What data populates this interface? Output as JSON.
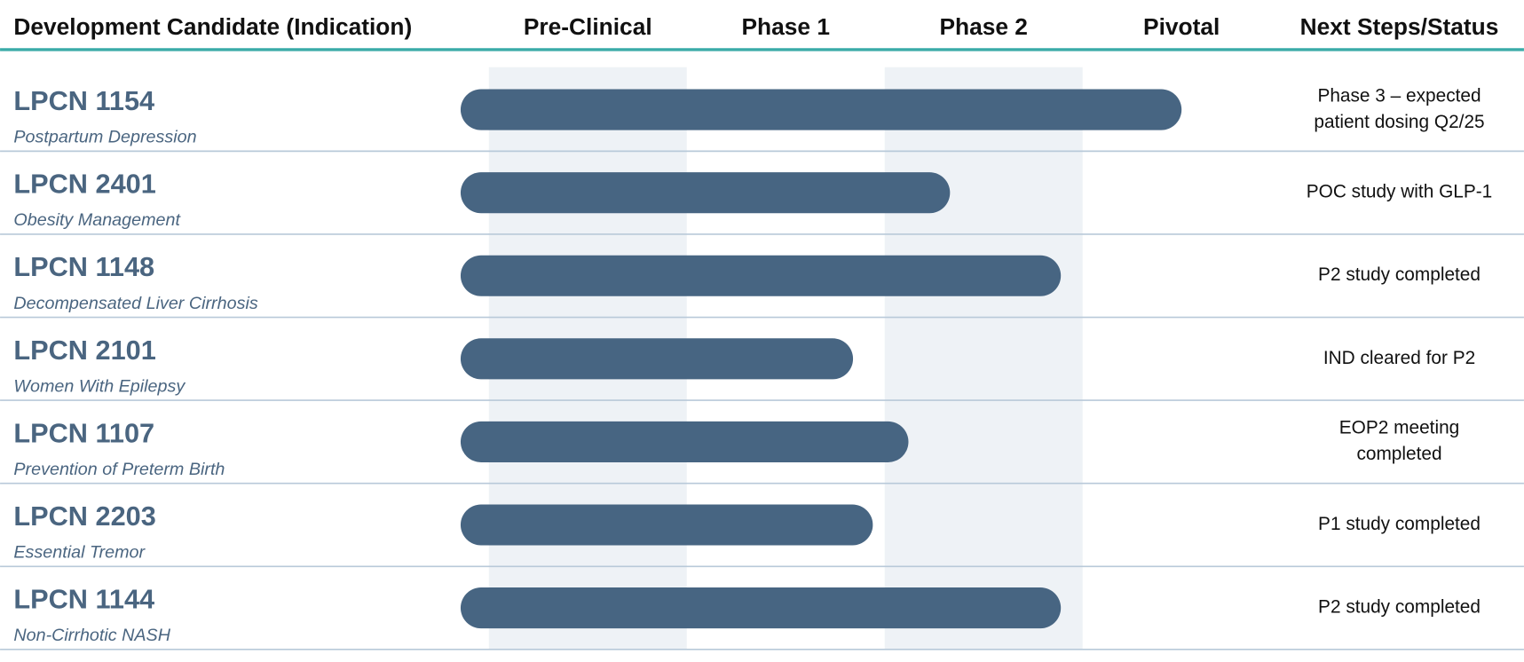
{
  "chart_data": {
    "type": "bar",
    "orientation": "horizontal",
    "candidate_header": "Development Candidate (Indication)",
    "stages": [
      "Pre-Clinical",
      "Phase 1",
      "Phase 2",
      "Pivotal"
    ],
    "status_header": "Next Steps/Status",
    "categories": [
      "LPCN 1154",
      "LPCN 2401",
      "LPCN 1148",
      "LPCN 2101",
      "LPCN 1107",
      "LPCN 2203",
      "LPCN 1144"
    ],
    "indications": [
      "Postpartum Depression",
      "Obesity Management",
      "Decompensated Liver Cirrhosis",
      "Women With Epilepsy",
      "Prevention of Preterm Birth",
      "Essential Tremor",
      "Non-Cirrhotic NASH"
    ],
    "statuses": [
      [
        "Phase 3 – expected",
        "patient dosing  Q2/25"
      ],
      [
        "POC study with GLP-1"
      ],
      [
        "P2 study completed"
      ],
      [
        "IND cleared for P2"
      ],
      [
        "EOP2 meeting",
        "completed"
      ],
      [
        "P1 study completed"
      ],
      [
        "P2 study completed"
      ]
    ],
    "values": [
      3.5,
      2.33,
      2.89,
      1.84,
      2.12,
      1.94,
      2.89
    ],
    "xlim": [
      0,
      4
    ],
    "color": "#476582",
    "band_color": "#eef2f6",
    "rule_color": "#3aaba8",
    "separator_color": "#b8c9d9"
  }
}
